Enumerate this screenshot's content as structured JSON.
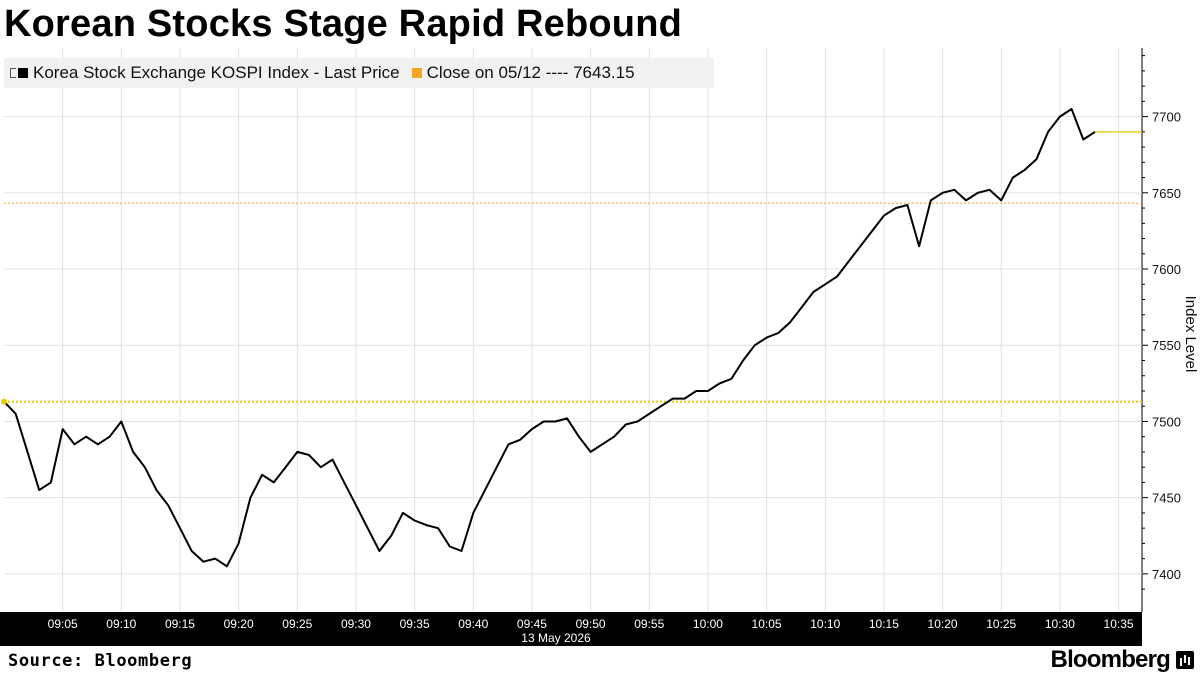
{
  "title": "Korean Stocks Stage Rapid Rebound",
  "legend": {
    "series_label": "Korea Stock Exchange KOSPI Index - Last Price",
    "close_label": "Close on 05/12 ---- 7643.15"
  },
  "source": "Source: Bloomberg",
  "brand": "Bloomberg",
  "colors": {
    "line": "#000000",
    "close_line": "#f5a623",
    "dotted_line": "#e8cc00",
    "grid": "#e2e2e2",
    "time_bar": "#000000"
  },
  "chart_data": {
    "type": "line",
    "title": "Korean Stocks Stage Rapid Rebound",
    "xlabel": "13 May 2026",
    "ylabel": "Index Level",
    "ylim": [
      7375,
      7745
    ],
    "yticks": [
      7400,
      7450,
      7500,
      7550,
      7600,
      7650,
      7700
    ],
    "xlim": [
      "09:00",
      "10:37"
    ],
    "xticks": [
      "09:05",
      "09:10",
      "09:15",
      "09:20",
      "09:25",
      "09:30",
      "09:35",
      "09:40",
      "09:45",
      "09:50",
      "09:55",
      "10:00",
      "10:05",
      "10:10",
      "10:15",
      "10:20",
      "10:25",
      "10:30",
      "10:35"
    ],
    "grid": true,
    "legend_position": "top-left",
    "reference_lines": [
      {
        "name": "Close on 05/12",
        "value": 7643.15,
        "style": "dotted"
      },
      {
        "value": 7513,
        "style": "dotted"
      }
    ],
    "series": [
      {
        "name": "Korea Stock Exchange KOSPI Index - Last Price",
        "x": [
          "09:00",
          "09:01",
          "09:02",
          "09:03",
          "09:04",
          "09:05",
          "09:06",
          "09:07",
          "09:08",
          "09:09",
          "09:10",
          "09:11",
          "09:12",
          "09:13",
          "09:14",
          "09:15",
          "09:16",
          "09:17",
          "09:18",
          "09:19",
          "09:20",
          "09:21",
          "09:22",
          "09:23",
          "09:24",
          "09:25",
          "09:26",
          "09:27",
          "09:28",
          "09:29",
          "09:30",
          "09:31",
          "09:32",
          "09:33",
          "09:34",
          "09:35",
          "09:36",
          "09:37",
          "09:38",
          "09:39",
          "09:40",
          "09:41",
          "09:42",
          "09:43",
          "09:44",
          "09:45",
          "09:46",
          "09:47",
          "09:48",
          "09:49",
          "09:50",
          "09:51",
          "09:52",
          "09:53",
          "09:54",
          "09:55",
          "09:56",
          "09:57",
          "09:58",
          "09:59",
          "10:00",
          "10:01",
          "10:02",
          "10:03",
          "10:04",
          "10:05",
          "10:06",
          "10:07",
          "10:08",
          "10:09",
          "10:10",
          "10:11",
          "10:12",
          "10:13",
          "10:14",
          "10:15",
          "10:16",
          "10:17",
          "10:18",
          "10:19",
          "10:20",
          "10:21",
          "10:22",
          "10:23",
          "10:24",
          "10:25",
          "10:26",
          "10:27",
          "10:28",
          "10:29",
          "10:30",
          "10:31",
          "10:32",
          "10:33"
        ],
        "values": [
          7513,
          7505,
          7480,
          7455,
          7460,
          7495,
          7485,
          7490,
          7485,
          7490,
          7500,
          7480,
          7470,
          7455,
          7445,
          7430,
          7415,
          7408,
          7410,
          7405,
          7420,
          7450,
          7465,
          7460,
          7470,
          7480,
          7478,
          7470,
          7475,
          7460,
          7445,
          7430,
          7415,
          7425,
          7440,
          7435,
          7432,
          7430,
          7418,
          7415,
          7440,
          7455,
          7470,
          7485,
          7488,
          7495,
          7500,
          7500,
          7502,
          7490,
          7480,
          7485,
          7490,
          7498,
          7500,
          7505,
          7510,
          7515,
          7515,
          7520,
          7520,
          7525,
          7528,
          7540,
          7550,
          7555,
          7558,
          7565,
          7575,
          7585,
          7590,
          7595,
          7605,
          7615,
          7625,
          7635,
          7640,
          7642,
          7615,
          7645,
          7650,
          7652,
          7645,
          7650,
          7652,
          7645,
          7660,
          7665,
          7672,
          7690,
          7700,
          7705,
          7685,
          7690
        ]
      }
    ]
  }
}
